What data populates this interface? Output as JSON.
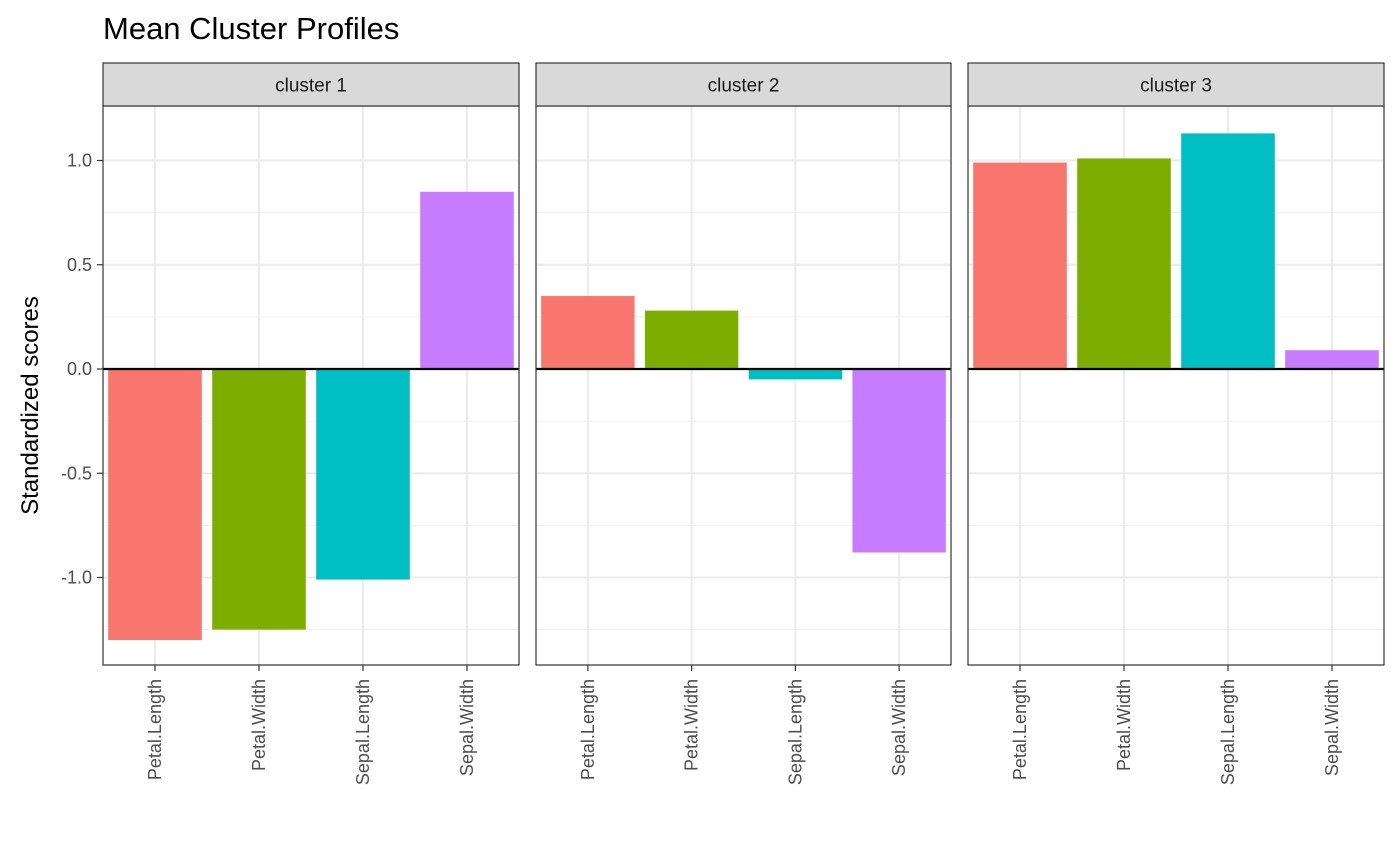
{
  "title": "Mean Cluster Profiles",
  "chart_data": {
    "type": "bar",
    "title": "Mean Cluster Profiles",
    "xlabel": "",
    "ylabel": "Standardized scores",
    "ylim": [
      -1.4,
      1.25
    ],
    "yticks": [
      -1.0,
      -0.5,
      0.0,
      0.5,
      1.0
    ],
    "ytick_labels": [
      "-1.0",
      "-0.5",
      "0.0",
      "0.5",
      "1.0"
    ],
    "categories": [
      "Petal.Length",
      "Petal.Width",
      "Sepal.Length",
      "Sepal.Width"
    ],
    "colors": [
      "#F8766D",
      "#7CAE00",
      "#00BFC4",
      "#C77CFF"
    ],
    "facets": [
      {
        "label": "cluster 1",
        "values": [
          -1.3,
          -1.25,
          -1.01,
          0.85
        ]
      },
      {
        "label": "cluster 2",
        "values": [
          0.35,
          0.28,
          -0.05,
          -0.88
        ]
      },
      {
        "label": "cluster 3",
        "values": [
          0.99,
          1.01,
          1.13,
          0.09
        ]
      }
    ],
    "zero_line": true,
    "grid": true,
    "legend": "none",
    "facet_strip_color": "#d9d9d9"
  }
}
